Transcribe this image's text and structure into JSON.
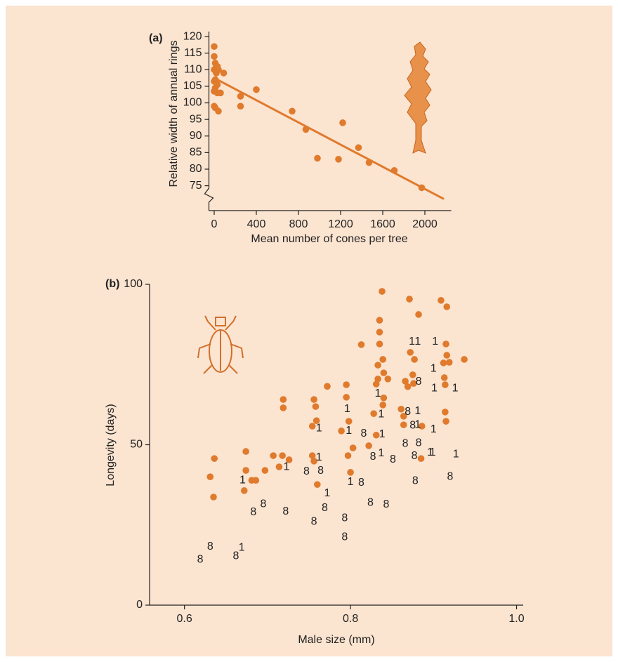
{
  "chart_data": [
    {
      "type": "scatter",
      "title": "(a)",
      "xlabel": "Mean number of cones per tree",
      "ylabel": "Relative width of annual rings",
      "xlim": [
        -50,
        2250
      ],
      "ylim": [
        67.5,
        121.5
      ],
      "xticks": [
        0,
        400,
        800,
        1200,
        1600,
        2000
      ],
      "yticks": [
        75,
        80,
        85,
        90,
        95,
        100,
        105,
        110,
        115,
        120
      ],
      "series": [
        {
          "color": "#e07a2c",
          "x": [
            0,
            0,
            10,
            20,
            30,
            40,
            0,
            20,
            10,
            0,
            30,
            10,
            0,
            30,
            60,
            0,
            10,
            40,
            90,
            250,
            250,
            400,
            740,
            870,
            980,
            1180,
            1220,
            1370,
            1470,
            1710,
            1970
          ],
          "y": [
            117,
            114,
            112,
            111,
            111,
            110,
            110,
            109,
            107,
            106.5,
            105.5,
            104.5,
            103.5,
            103,
            103,
            99,
            98.5,
            97.5,
            109,
            102,
            99,
            104,
            97.5,
            92,
            83.3,
            83,
            94,
            86.5,
            82,
            79.6,
            74.4
          ]
        }
      ],
      "trend_line": {
        "color": "#e07a2c",
        "x": [
          0,
          2180
        ],
        "y": [
          107.5,
          71
        ]
      }
    },
    {
      "type": "scatter",
      "title": "(b)",
      "xlabel": "Male size (mm)",
      "ylabel": "Longevity (days)",
      "xlim": [
        0.558,
        1.008
      ],
      "ylim": [
        0,
        100
      ],
      "xticks": [
        0.6,
        0.8,
        {
          "value": 1,
          "label": "1.0"
        }
      ],
      "yticks": [
        0,
        50,
        100
      ],
      "series": [
        {
          "color": "#e07a2c",
          "x": [
            0.631,
            0.636,
            0.635,
            0.674,
            0.674,
            0.672,
            0.681,
            0.686,
            0.697,
            0.707,
            0.718,
            0.714,
            0.726,
            0.719,
            0.719,
            0.756,
            0.758,
            0.759,
            0.754,
            0.754,
            0.756,
            0.76,
            0.772,
            0.789,
            0.795,
            0.795,
            0.798,
            0.797,
            0.8,
            0.803,
            0.813,
            0.822,
            0.828,
            0.831,
            0.831,
            0.833,
            0.833,
            0.835,
            0.835,
            0.835,
            0.838,
            0.839,
            0.84,
            0.839,
            0.84,
            0.845,
            0.861,
            0.864,
            0.864,
            0.866,
            0.869,
            0.871,
            0.872,
            0.875,
            0.876,
            0.877,
            0.882,
            0.886,
            0.885,
            0.909,
            0.916,
            0.915,
            0.916,
            0.912,
            0.919,
            0.913,
            0.914,
            0.914,
            0.915,
            0.937
          ],
          "y": [
            40,
            45.7,
            33.7,
            47.9,
            42,
            35.7,
            38.9,
            38.9,
            42,
            46.6,
            46.6,
            43.1,
            45.3,
            64.1,
            61.5,
            64.1,
            61.9,
            57.5,
            55.8,
            46.6,
            44.9,
            37.6,
            68.2,
            54.3,
            68.7,
            64.8,
            57.3,
            46.6,
            41.4,
            49,
            81.2,
            49.7,
            59.7,
            53,
            68.9,
            70.5,
            74.8,
            81.4,
            85.1,
            88.8,
            97.8,
            76.6,
            72.4,
            62.4,
            64.6,
            70.5,
            61.1,
            58.9,
            56.2,
            69.8,
            68.1,
            95.4,
            78.8,
            71.8,
            69.1,
            76.6,
            90.6,
            55.8,
            45.7,
            95,
            93,
            81.4,
            77.9,
            75.5,
            75.7,
            70.9,
            68.7,
            60.2,
            57.3,
            76.6
          ]
        },
        {
          "marker_label": "8",
          "color": "#222222",
          "x": [
            0.619,
            0.631,
            0.662,
            0.683,
            0.695,
            0.722,
            0.747,
            0.756,
            0.764,
            0.769,
            0.793,
            0.793,
            0.813,
            0.816,
            0.824,
            0.827,
            0.843,
            0.851,
            0.866,
            0.869,
            0.875,
            0.878,
            0.877,
            0.882,
            0.882,
            0.92
          ],
          "y": [
            14.2,
            18.2,
            15.3,
            28.9,
            31.5,
            29.1,
            41.6,
            26,
            41.8,
            30.2,
            27.1,
            21.2,
            38.1,
            53.4,
            31.9,
            46.2,
            31.3,
            45.3,
            50.3,
            60.2,
            56,
            38.7,
            46.4,
            50.5,
            69.6,
            40
          ]
        },
        {
          "marker_label": "1",
          "color": "#222222",
          "x": [
            0.67,
            0.669,
            0.723,
            0.762,
            0.762,
            0.772,
            0.796,
            0.798,
            0.8,
            0.833,
            0.837,
            0.838,
            0.837,
            0.874,
            0.881,
            0.881,
            0.881,
            0.896,
            0.899,
            0.9,
            0.901,
            0.902,
            0.9,
            0.926,
            0.927
          ],
          "y": [
            38.9,
            17.9,
            43.1,
            55.1,
            46,
            34.8,
            61.1,
            54.3,
            38.3,
            65.9,
            59.5,
            53.2,
            47.3,
            82.1,
            82.1,
            60.4,
            56.2,
            47.5,
            47.5,
            54.7,
            67.6,
            82.1,
            73.7,
            67.6,
            47
          ]
        }
      ]
    }
  ]
}
